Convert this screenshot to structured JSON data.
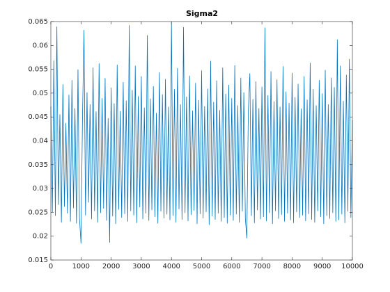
{
  "chart_data": {
    "type": "line",
    "title": "Sigma2",
    "color": "#0072bd",
    "xlim": [
      0,
      10000
    ],
    "ylim": [
      0.015,
      0.065
    ],
    "xticks": [
      0,
      1000,
      2000,
      3000,
      4000,
      5000,
      6000,
      7000,
      8000,
      9000,
      10000
    ],
    "yticks": [
      0.015,
      0.02,
      0.025,
      0.03,
      0.035,
      0.04,
      0.045,
      0.05,
      0.055,
      0.06,
      0.065
    ],
    "x": [
      0,
      50,
      100,
      150,
      200,
      250,
      300,
      350,
      400,
      450,
      500,
      550,
      600,
      650,
      700,
      750,
      800,
      850,
      900,
      950,
      1000,
      1050,
      1100,
      1150,
      1200,
      1250,
      1300,
      1350,
      1400,
      1450,
      1500,
      1550,
      1600,
      1650,
      1700,
      1750,
      1800,
      1850,
      1900,
      1950,
      2000,
      2050,
      2100,
      2150,
      2200,
      2250,
      2300,
      2350,
      2400,
      2450,
      2500,
      2550,
      2600,
      2650,
      2700,
      2750,
      2800,
      2850,
      2900,
      2950,
      3000,
      3050,
      3100,
      3150,
      3200,
      3250,
      3300,
      3350,
      3400,
      3450,
      3500,
      3550,
      3600,
      3650,
      3700,
      3750,
      3800,
      3850,
      3900,
      3950,
      4000,
      4050,
      4100,
      4150,
      4200,
      4250,
      4300,
      4350,
      4400,
      4450,
      4500,
      4550,
      4600,
      4650,
      4700,
      4750,
      4800,
      4850,
      4900,
      4950,
      5000,
      5050,
      5100,
      5150,
      5200,
      5250,
      5300,
      5350,
      5400,
      5450,
      5500,
      5550,
      5600,
      5650,
      5700,
      5750,
      5800,
      5850,
      5900,
      5950,
      6000,
      6050,
      6100,
      6150,
      6200,
      6250,
      6300,
      6350,
      6400,
      6450,
      6500,
      6550,
      6600,
      6650,
      6700,
      6750,
      6800,
      6850,
      6900,
      6950,
      7000,
      7050,
      7100,
      7150,
      7200,
      7250,
      7300,
      7350,
      7400,
      7450,
      7500,
      7550,
      7600,
      7650,
      7700,
      7750,
      7800,
      7850,
      7900,
      7950,
      8000,
      8050,
      8100,
      8150,
      8200,
      8250,
      8300,
      8350,
      8400,
      8450,
      8500,
      8550,
      8600,
      8650,
      8700,
      8750,
      8800,
      8850,
      8900,
      8950,
      9000,
      9050,
      9100,
      9150,
      9200,
      9250,
      9300,
      9350,
      9400,
      9450,
      9500,
      9550,
      9600,
      9650,
      9700,
      9750,
      9800,
      9850,
      9900,
      9950,
      10000
    ],
    "values": [
      0.0472,
      0.0251,
      0.0568,
      0.0243,
      0.0639,
      0.0266,
      0.0455,
      0.0229,
      0.0518,
      0.0262,
      0.0437,
      0.0248,
      0.0496,
      0.0231,
      0.0527,
      0.0259,
      0.0468,
      0.0227,
      0.0549,
      0.0238,
      0.0185,
      0.0452,
      0.0632,
      0.0244,
      0.0501,
      0.0271,
      0.0476,
      0.0236,
      0.0553,
      0.0253,
      0.0461,
      0.0229,
      0.0562,
      0.0249,
      0.0489,
      0.0258,
      0.0531,
      0.0233,
      0.0447,
      0.0187,
      0.0511,
      0.0242,
      0.0478,
      0.0226,
      0.0559,
      0.0256,
      0.0462,
      0.0239,
      0.0523,
      0.0247,
      0.0484,
      0.0231,
      0.0642,
      0.0253,
      0.0506,
      0.0244,
      0.0557,
      0.0228,
      0.0493,
      0.0261,
      0.0535,
      0.0236,
      0.0469,
      0.0248,
      0.0621,
      0.0233,
      0.0488,
      0.0255,
      0.0514,
      0.0241,
      0.0458,
      0.0227,
      0.0543,
      0.0252,
      0.0497,
      0.0238,
      0.0529,
      0.0246,
      0.0471,
      0.0234,
      0.0649,
      0.0243,
      0.0508,
      0.0229,
      0.0552,
      0.0257,
      0.0476,
      0.0235,
      0.0638,
      0.0249,
      0.0492,
      0.0232,
      0.0536,
      0.0245,
      0.0463,
      0.0254,
      0.0521,
      0.0226,
      0.0485,
      0.0247,
      0.0547,
      0.0238,
      0.0472,
      0.0251,
      0.0509,
      0.0224,
      0.0567,
      0.0242,
      0.0481,
      0.0235,
      0.0526,
      0.0248,
      0.0464,
      0.0231,
      0.0553,
      0.0239,
      0.0498,
      0.0227,
      0.0517,
      0.0244,
      0.0489,
      0.0233,
      0.0558,
      0.0246,
      0.0474,
      0.0229,
      0.0532,
      0.0252,
      0.0501,
      0.0237,
      0.0196,
      0.0466,
      0.0541,
      0.0243,
      0.0487,
      0.0228,
      0.0524,
      0.0255,
      0.0468,
      0.0236,
      0.0513,
      0.0241,
      0.0637,
      0.0232,
      0.0495,
      0.0249,
      0.0545,
      0.0226,
      0.0482,
      0.0253,
      0.0528,
      0.0237,
      0.0471,
      0.0245,
      0.0556,
      0.0231,
      0.0503,
      0.0248,
      0.0479,
      0.0234,
      0.0542,
      0.0228,
      0.0491,
      0.0251,
      0.0519,
      0.0239,
      0.0467,
      0.0244,
      0.0535,
      0.0232,
      0.0486,
      0.0247,
      0.0563,
      0.0235,
      0.0508,
      0.0229,
      0.0474,
      0.0253,
      0.0527,
      0.0241,
      0.0499,
      0.0226,
      0.0548,
      0.0243,
      0.0476,
      0.0237,
      0.0532,
      0.0249,
      0.0512,
      0.0231,
      0.0612,
      0.0234,
      0.0557,
      0.0246,
      0.0483,
      0.0228,
      0.0538,
      0.0252,
      0.0571,
      0.0239,
      0.0443
    ]
  }
}
